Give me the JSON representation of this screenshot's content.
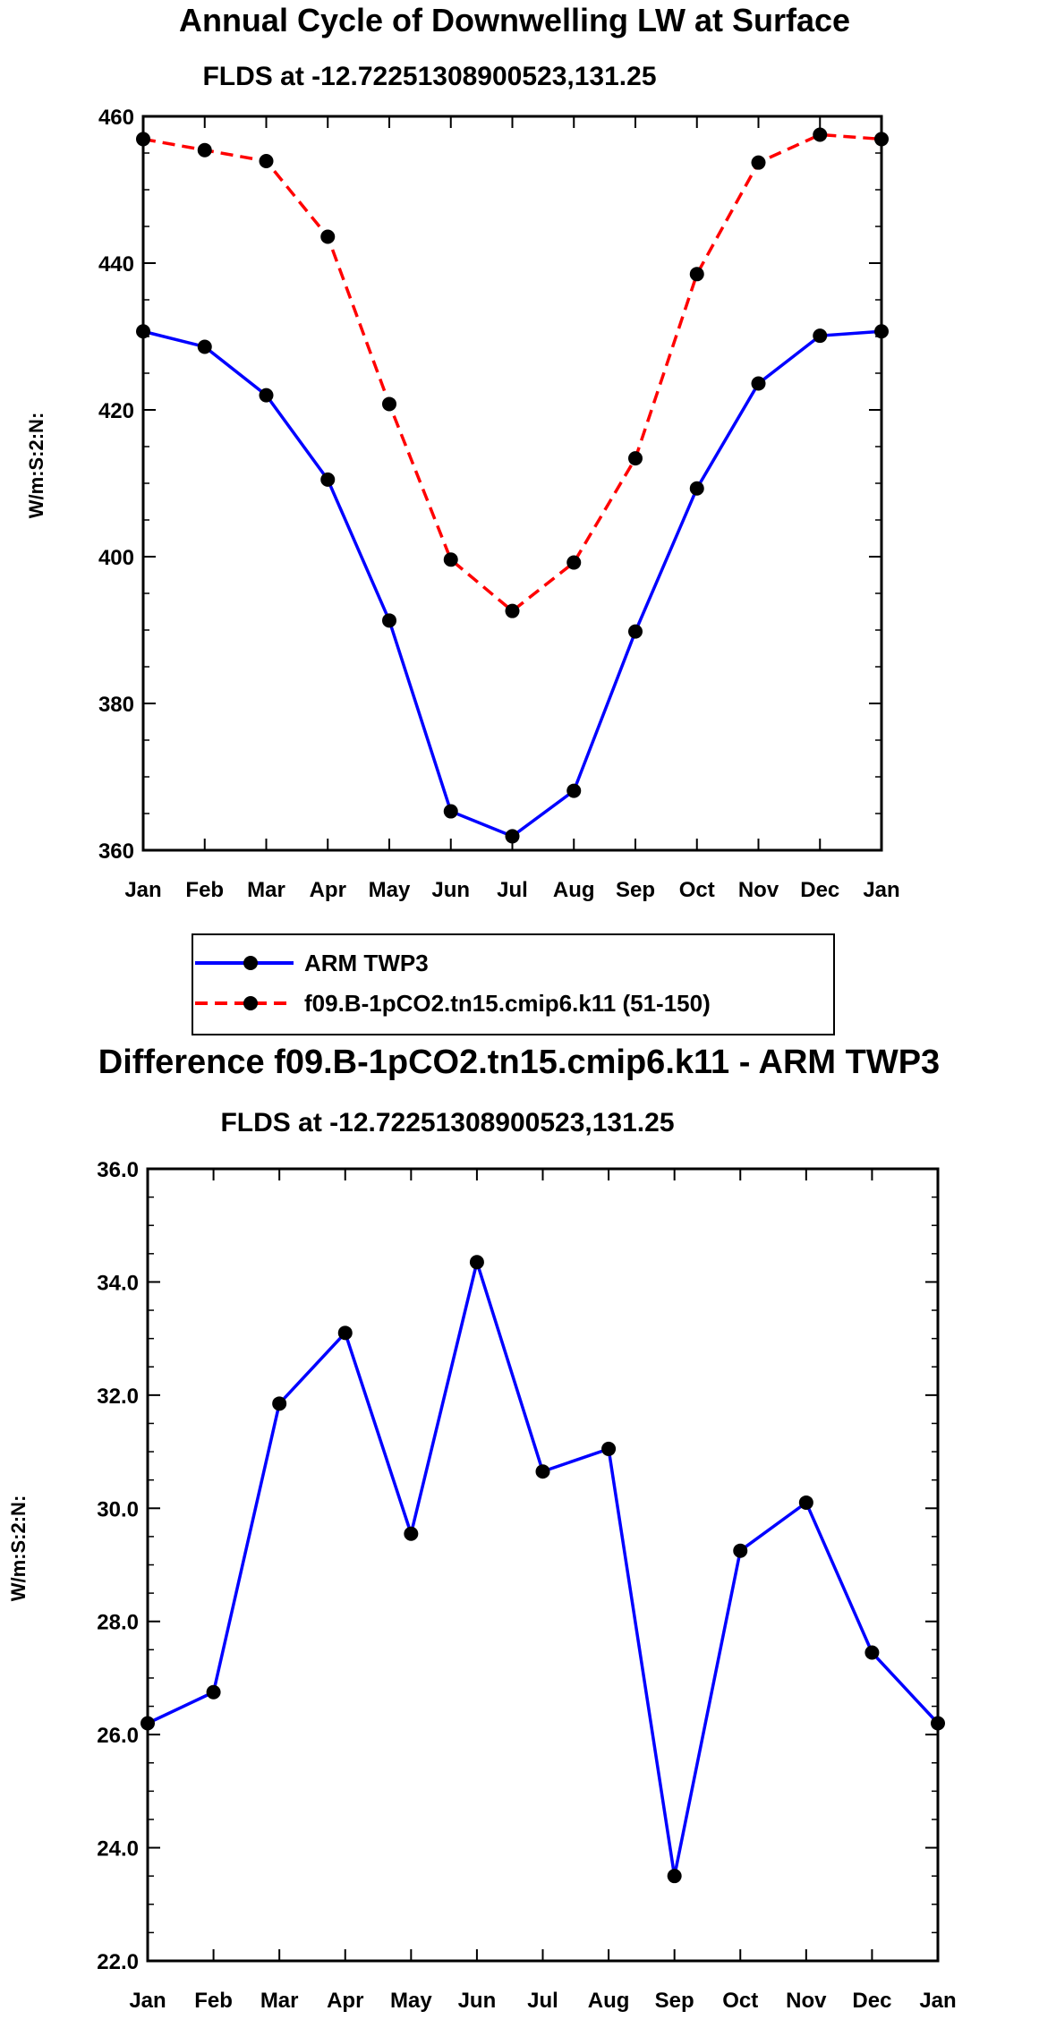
{
  "chart_data": [
    {
      "type": "line",
      "title": "Annual Cycle of Downwelling LW at Surface",
      "subtitle": "FLDS at -12.72251308900523,131.25",
      "ylabel": "W/m:S:2:N:",
      "xlabel": "",
      "categories": [
        "Jan",
        "Feb",
        "Mar",
        "Apr",
        "May",
        "Jun",
        "Jul",
        "Aug",
        "Sep",
        "Oct",
        "Nov",
        "Dec",
        "Jan"
      ],
      "ylim": [
        360,
        460
      ],
      "yticks": [
        "360",
        "380",
        "400",
        "420",
        "440",
        "460"
      ],
      "series": [
        {
          "name": "ARM TWP3",
          "color": "#0000ff",
          "dashed": false,
          "values": [
            430.7,
            428.6,
            422.0,
            410.5,
            391.3,
            365.3,
            361.9,
            368.1,
            389.8,
            409.3,
            423.6,
            430.1,
            430.7
          ]
        },
        {
          "name": "f09.B-1pCO2.tn15.cmip6.k11 (51-150)",
          "color": "#ff0000",
          "dashed": true,
          "values": [
            456.9,
            455.4,
            453.9,
            443.6,
            420.8,
            399.6,
            392.6,
            399.2,
            413.4,
            438.5,
            453.7,
            457.5,
            456.9
          ]
        }
      ],
      "legend": "below"
    },
    {
      "type": "line",
      "title": "Difference f09.B-1pCO2.tn15.cmip6.k11 - ARM TWP3",
      "subtitle": "FLDS at -12.72251308900523,131.25",
      "ylabel": "W/m:S:2:N:",
      "xlabel": "",
      "categories": [
        "Jan",
        "Feb",
        "Mar",
        "Apr",
        "May",
        "Jun",
        "Jul",
        "Aug",
        "Sep",
        "Oct",
        "Nov",
        "Dec",
        "Jan"
      ],
      "ylim": [
        22,
        36
      ],
      "yticks": [
        "22.0",
        "24.0",
        "26.0",
        "28.0",
        "30.0",
        "32.0",
        "34.0",
        "36.0"
      ],
      "series": [
        {
          "name": "difference",
          "color": "#0000ff",
          "dashed": false,
          "values": [
            26.2,
            26.75,
            31.85,
            33.1,
            29.55,
            34.35,
            30.65,
            31.05,
            23.5,
            29.25,
            30.1,
            27.45,
            26.2
          ]
        }
      ]
    }
  ]
}
